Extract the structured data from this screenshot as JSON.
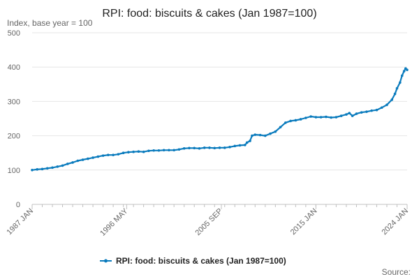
{
  "chart_data": {
    "type": "line",
    "title": "RPI: food: biscuits & cakes (Jan 1987=100)",
    "ylabel": "Index, base year = 100",
    "ylim": [
      0,
      500
    ],
    "yticks": [
      0,
      100,
      200,
      300,
      400,
      500
    ],
    "xlim": [
      1987.0,
      2024.0
    ],
    "xticks": [
      {
        "label": "1987 JAN",
        "x": 1987.0
      },
      {
        "label": "1996 MAY",
        "x": 1996.33
      },
      {
        "label": "2005 SEP",
        "x": 2005.67
      },
      {
        "label": "2015 JAN",
        "x": 2015.0
      },
      {
        "label": "2024 JAN",
        "x": 2024.0
      }
    ],
    "legend_position": "bottom",
    "series": [
      {
        "name": "RPI: food: biscuits & cakes (Jan 1987=100)",
        "color": "#0a7bbd",
        "points": [
          [
            1987.0,
            100
          ],
          [
            1987.5,
            102
          ],
          [
            1988.0,
            103
          ],
          [
            1988.5,
            105
          ],
          [
            1989.0,
            107
          ],
          [
            1989.5,
            110
          ],
          [
            1990.0,
            113
          ],
          [
            1990.5,
            118
          ],
          [
            1991.0,
            122
          ],
          [
            1991.5,
            127
          ],
          [
            1992.0,
            130
          ],
          [
            1992.5,
            133
          ],
          [
            1993.0,
            136
          ],
          [
            1993.5,
            139
          ],
          [
            1994.0,
            142
          ],
          [
            1994.5,
            144
          ],
          [
            1995.0,
            144
          ],
          [
            1995.5,
            146
          ],
          [
            1996.0,
            150
          ],
          [
            1996.5,
            152
          ],
          [
            1997.0,
            153
          ],
          [
            1997.5,
            154
          ],
          [
            1998.0,
            153
          ],
          [
            1998.5,
            156
          ],
          [
            1999.0,
            157
          ],
          [
            1999.5,
            157
          ],
          [
            2000.0,
            158
          ],
          [
            2000.5,
            158
          ],
          [
            2001.0,
            158
          ],
          [
            2001.5,
            160
          ],
          [
            2002.0,
            163
          ],
          [
            2002.5,
            164
          ],
          [
            2003.0,
            164
          ],
          [
            2003.5,
            163
          ],
          [
            2004.0,
            165
          ],
          [
            2004.5,
            165
          ],
          [
            2005.0,
            164
          ],
          [
            2005.5,
            165
          ],
          [
            2006.0,
            165
          ],
          [
            2006.5,
            167
          ],
          [
            2007.0,
            170
          ],
          [
            2007.5,
            172
          ],
          [
            2008.0,
            173
          ],
          [
            2008.2,
            180
          ],
          [
            2008.5,
            185
          ],
          [
            2008.7,
            200
          ],
          [
            2009.0,
            203
          ],
          [
            2009.5,
            202
          ],
          [
            2010.0,
            200
          ],
          [
            2010.5,
            206
          ],
          [
            2011.0,
            212
          ],
          [
            2011.5,
            225
          ],
          [
            2012.0,
            238
          ],
          [
            2012.5,
            243
          ],
          [
            2013.0,
            245
          ],
          [
            2013.5,
            248
          ],
          [
            2014.0,
            252
          ],
          [
            2014.5,
            256
          ],
          [
            2015.0,
            254
          ],
          [
            2015.5,
            254
          ],
          [
            2016.0,
            255
          ],
          [
            2016.5,
            253
          ],
          [
            2017.0,
            254
          ],
          [
            2017.5,
            258
          ],
          [
            2018.0,
            262
          ],
          [
            2018.3,
            266
          ],
          [
            2018.6,
            258
          ],
          [
            2019.0,
            264
          ],
          [
            2019.5,
            268
          ],
          [
            2020.0,
            270
          ],
          [
            2020.5,
            273
          ],
          [
            2021.0,
            275
          ],
          [
            2021.5,
            282
          ],
          [
            2022.0,
            290
          ],
          [
            2022.5,
            305
          ],
          [
            2022.8,
            322
          ],
          [
            2023.0,
            338
          ],
          [
            2023.3,
            355
          ],
          [
            2023.5,
            375
          ],
          [
            2023.7,
            388
          ],
          [
            2023.85,
            396
          ],
          [
            2024.0,
            392
          ]
        ]
      }
    ]
  },
  "source_label": "Source:"
}
